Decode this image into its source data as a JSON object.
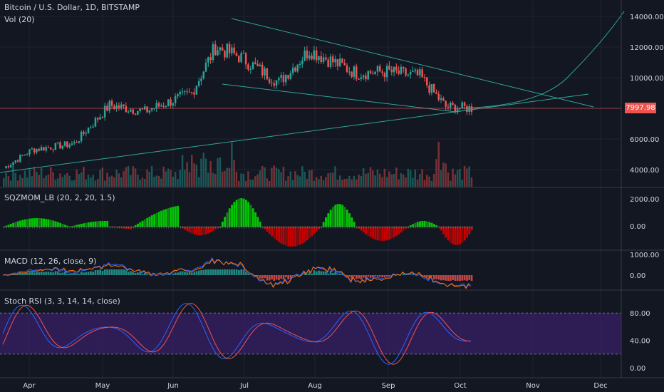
{
  "symbol_title": "Bitcoin / U.S. Dollar, 1D, BITSTAMP",
  "volume_label": "Vol (20)",
  "price_badge": "7997.98",
  "colors": {
    "background": "#131722",
    "up": "#26a69a",
    "down": "#ef5350",
    "trendline": "#2fa59a",
    "grid": "#1e2330",
    "rsi_band": "#3b1f6b",
    "squeeze_up_strong": "#00c800",
    "squeeze_up_weak": "#1e7a1e",
    "squeeze_down_strong": "#c80000",
    "squeeze_down_weak": "#7a1010"
  },
  "chart_data": [
    {
      "type": "candlestick",
      "title": "Bitcoin / U.S. Dollar, 1D, BITSTAMP",
      "x_ticks": [
        "Apr",
        "May",
        "Jun",
        "Jul",
        "Aug",
        "Sep",
        "Oct",
        "Nov",
        "Dec"
      ],
      "y_ticks": [
        "14000.00",
        "12000.00",
        "10000.00",
        "8000.00",
        "6000.00",
        "4000.00"
      ],
      "ylim": [
        3000,
        14500
      ],
      "last_price": 7997.98,
      "monthly_path": [
        {
          "month": "Apr",
          "close": 4100
        },
        {
          "month": "Apr",
          "close": 5300
        },
        {
          "month": "May",
          "close": 5700
        },
        {
          "month": "May",
          "close": 8200
        },
        {
          "month": "Jun",
          "close": 7800
        },
        {
          "month": "Jun",
          "close": 9000
        },
        {
          "month": "Jun",
          "close": 12000
        },
        {
          "month": "Jul",
          "close": 11400
        },
        {
          "month": "Jul",
          "close": 9700
        },
        {
          "month": "Aug",
          "close": 11800
        },
        {
          "month": "Aug",
          "close": 10300
        },
        {
          "month": "Sep",
          "close": 10400
        },
        {
          "month": "Sep",
          "close": 10100
        },
        {
          "month": "Oct",
          "close": 8100
        },
        {
          "month": "Oct",
          "close": 8000
        }
      ]
    },
    {
      "type": "bar",
      "title": "Vol (20)"
    },
    {
      "type": "bar",
      "title": "SQZMOM_LB (20, 2, 20, 1.5)",
      "y_ticks": [
        "2000.00",
        "0.00"
      ]
    },
    {
      "type": "line",
      "title": "MACD (12, 26, close, 9)",
      "y_ticks": [
        "1000.00",
        "0.00"
      ]
    },
    {
      "type": "line",
      "title": "Stoch RSI (3, 3, 14, 14, close)",
      "y_ticks": [
        "80.00",
        "40.00",
        "0.00"
      ],
      "band": [
        20,
        80
      ]
    }
  ],
  "panes": {
    "squeeze_label": "SQZMOM_LB (20, 2, 20, 1.5)",
    "macd_label": "MACD (12, 26, close, 9)",
    "stoch_label": "Stoch RSI (3, 3, 14, 14, close)"
  }
}
